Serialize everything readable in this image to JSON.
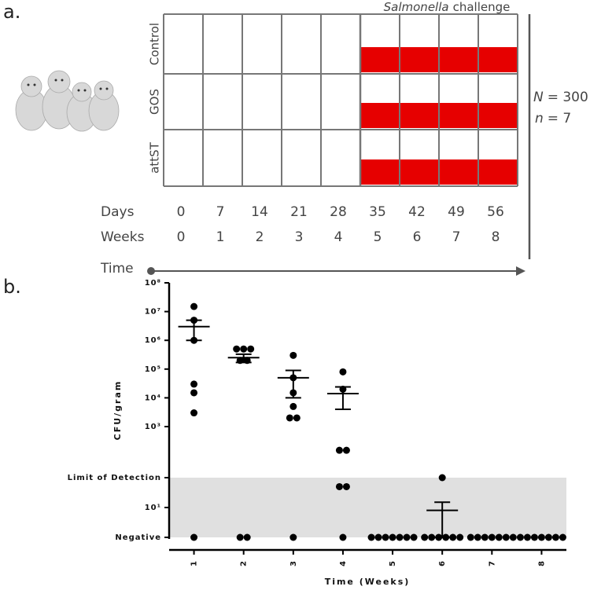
{
  "panel_a": {
    "label": "a.",
    "challenge": {
      "organism": "Salmonella",
      "text": "challenge"
    },
    "groups": [
      "Control",
      "GOS",
      "attST"
    ],
    "days": {
      "label": "Days",
      "values": [
        0,
        7,
        14,
        21,
        28,
        35,
        42,
        49,
        56
      ]
    },
    "weeks": {
      "label": "Weeks",
      "values": [
        0,
        1,
        2,
        3,
        4,
        5,
        6,
        7,
        8
      ]
    },
    "time_label": "Time",
    "N": {
      "symbol": "N",
      "text": "= 300"
    },
    "n": {
      "symbol": "n",
      "text": "= 7"
    },
    "challenge_color": "#e60000"
  },
  "chart_data": {
    "type": "scatter",
    "panel_label": "b.",
    "x_label": "Time (Weeks)",
    "y_label": "CFU/gram",
    "categories": [
      "1",
      "2",
      "3",
      "4",
      "5",
      "6",
      "7",
      "8"
    ],
    "values": [
      [
        15000000,
        5000000,
        1000000,
        30000,
        15000,
        3000,
        1
      ],
      [
        500000,
        500000,
        500000,
        200000,
        200000,
        1,
        1
      ],
      [
        300000,
        50000,
        15000,
        5000,
        2000,
        2000,
        1
      ],
      [
        80000,
        20000,
        150,
        150,
        50,
        50,
        1
      ],
      [
        1,
        1,
        1,
        1,
        1,
        1,
        1
      ],
      [
        100,
        1,
        1,
        1,
        1,
        1,
        1
      ],
      [
        1,
        1,
        1,
        1,
        1,
        1,
        1
      ],
      [
        1,
        1,
        1,
        1,
        1,
        1,
        1
      ]
    ],
    "means": [
      3000000,
      250000,
      50000,
      14000,
      null,
      8,
      null,
      null
    ],
    "errors": [
      2000000,
      80000,
      40000,
      10000,
      null,
      7,
      null,
      null
    ],
    "color": "#000000",
    "log_scale": true,
    "ylim": [
      1,
      100000000
    ],
    "y_break": [
      100,
      1000
    ],
    "yticks": [
      {
        "value": 100000000,
        "label": "10⁸"
      },
      {
        "value": 10000000,
        "label": "10⁷"
      },
      {
        "value": 1000000,
        "label": "10⁶"
      },
      {
        "value": 100000,
        "label": "10⁵"
      },
      {
        "value": 10000,
        "label": "10⁴"
      },
      {
        "value": 1000,
        "label": "10³"
      },
      {
        "value": 100,
        "label": "Limit of Detection"
      },
      {
        "value": 10,
        "label": "10¹"
      },
      {
        "value": 1,
        "label": "Negative"
      }
    ],
    "shade": [
      1,
      100
    ],
    "shade_color": "#e0e0e0"
  }
}
